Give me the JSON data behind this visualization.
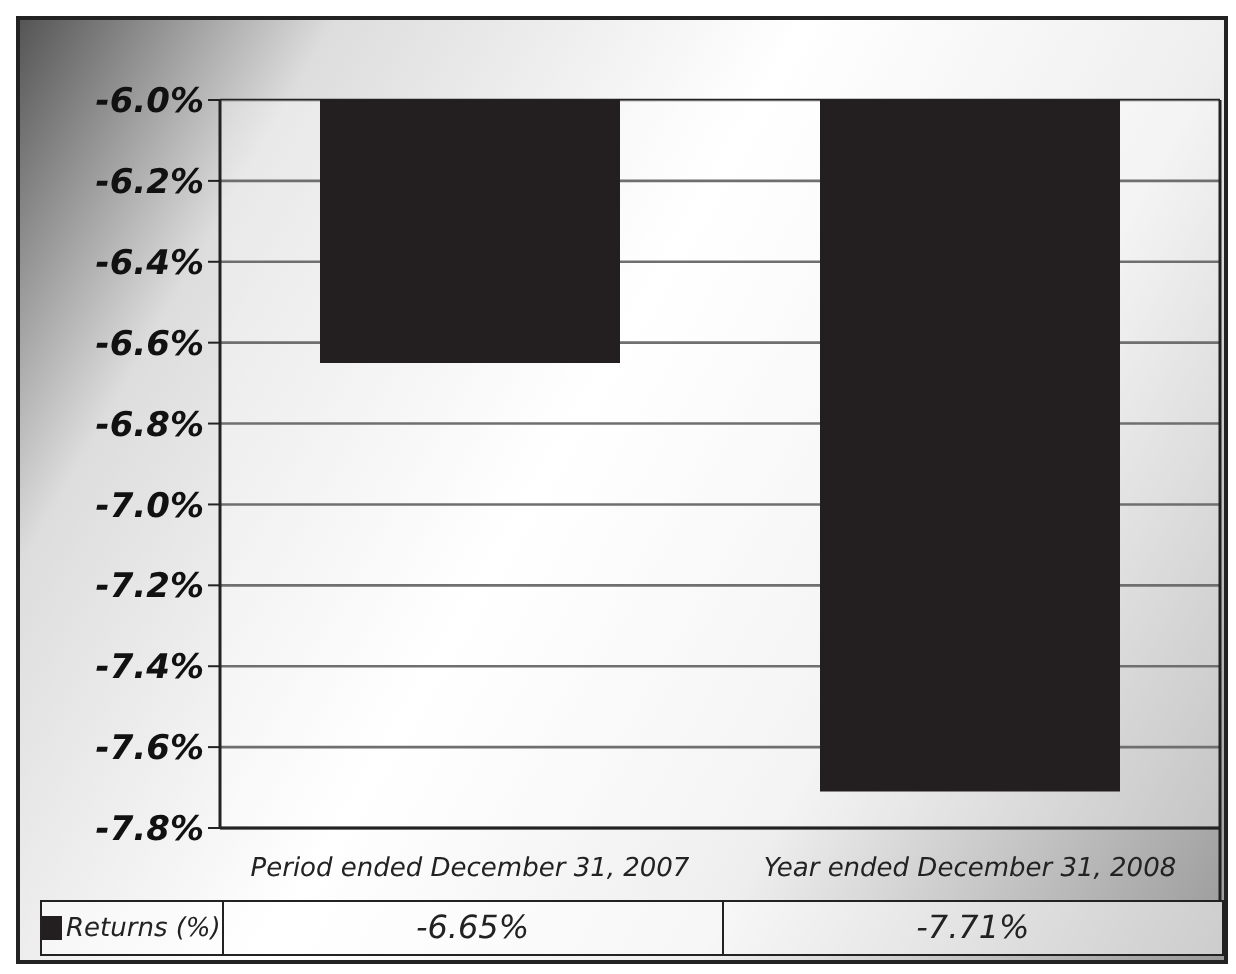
{
  "chart_data": {
    "type": "bar",
    "categories": [
      "Period ended December 31, 2007",
      "Year ended December 31, 2008"
    ],
    "series": [
      {
        "name": "Returns (%)",
        "color": "#231f20",
        "values": [
          -6.65,
          -7.71
        ],
        "value_labels": [
          "-6.65%",
          "-7.71%"
        ]
      }
    ],
    "ylim": [
      -7.8,
      -6.0
    ],
    "yticks": [
      {
        "value": -6.0,
        "label": "-6.0%"
      },
      {
        "value": -6.2,
        "label": "-6.2%"
      },
      {
        "value": -6.4,
        "label": "-6.4%"
      },
      {
        "value": -6.6,
        "label": "-6.6%"
      },
      {
        "value": -6.8,
        "label": "-6.8%"
      },
      {
        "value": -7.0,
        "label": "-7.0%"
      },
      {
        "value": -7.2,
        "label": "-7.2%"
      },
      {
        "value": -7.4,
        "label": "-7.4%"
      },
      {
        "value": -7.6,
        "label": "-7.6%"
      },
      {
        "value": -7.8,
        "label": "-7.8%"
      }
    ],
    "grid": "y"
  }
}
